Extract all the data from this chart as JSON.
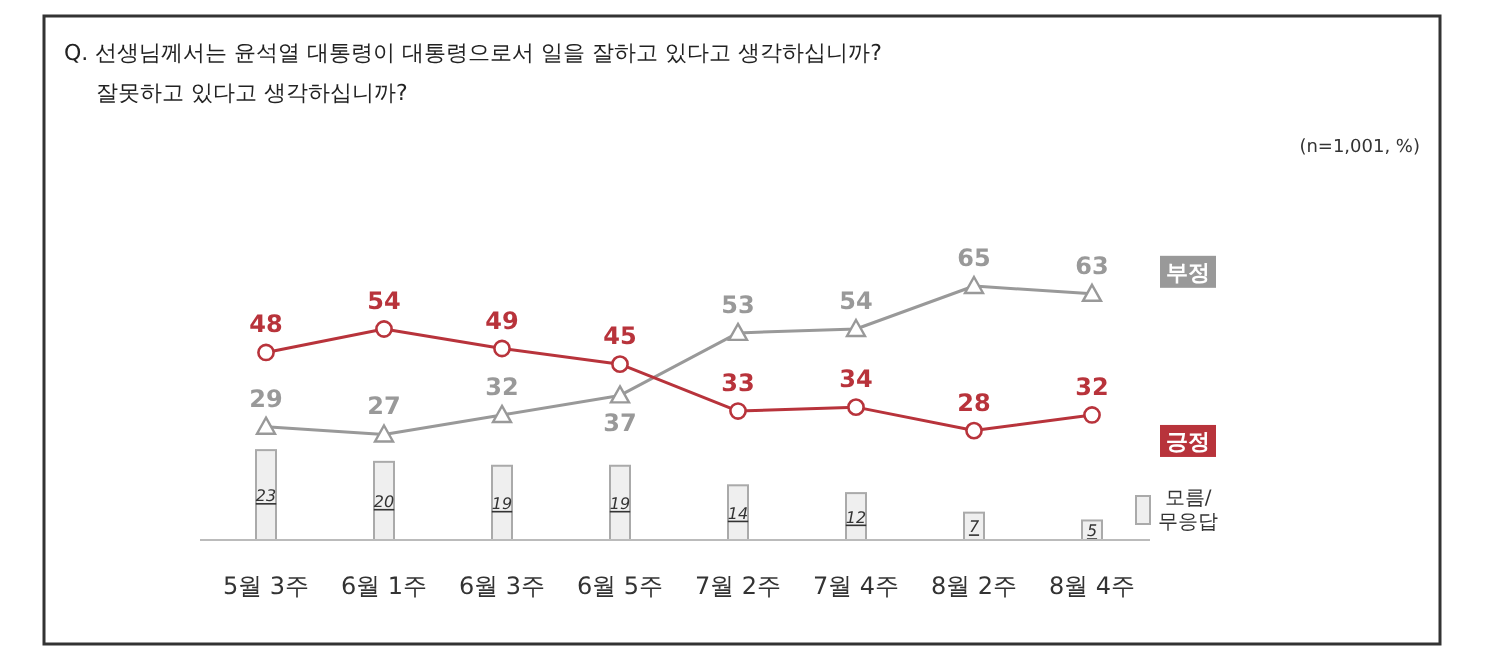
{
  "chart_data": {
    "type": "line",
    "title": "Q. 선생님께서는 윤석열 대통령이 대통령으로서 일을 잘하고 있다고 생각하십니까?",
    "subtitle": "잘못하고 있다고 생각하십니까?",
    "annotations": [
      "(n=1,001,  %)"
    ],
    "categories": [
      "5월 3주",
      "6월 1주",
      "6월 3주",
      "6월 5주",
      "7월 2주",
      "7월 4주",
      "8월 2주",
      "8월 4주"
    ],
    "series": [
      {
        "name": "모름/무응답",
        "type": "bar",
        "color": "#efefef",
        "values": [
          23,
          20,
          19,
          19,
          14,
          12,
          7,
          5
        ]
      },
      {
        "name": "부정",
        "color": "#999999",
        "marker": "triangle",
        "values": [
          29,
          27,
          32,
          37,
          53,
          54,
          65,
          63
        ]
      },
      {
        "name": "긍정",
        "color": "#b8333b",
        "marker": "circle",
        "values": [
          48,
          54,
          49,
          45,
          33,
          34,
          28,
          32
        ]
      }
    ],
    "data_labels": true,
    "legend": "right"
  }
}
